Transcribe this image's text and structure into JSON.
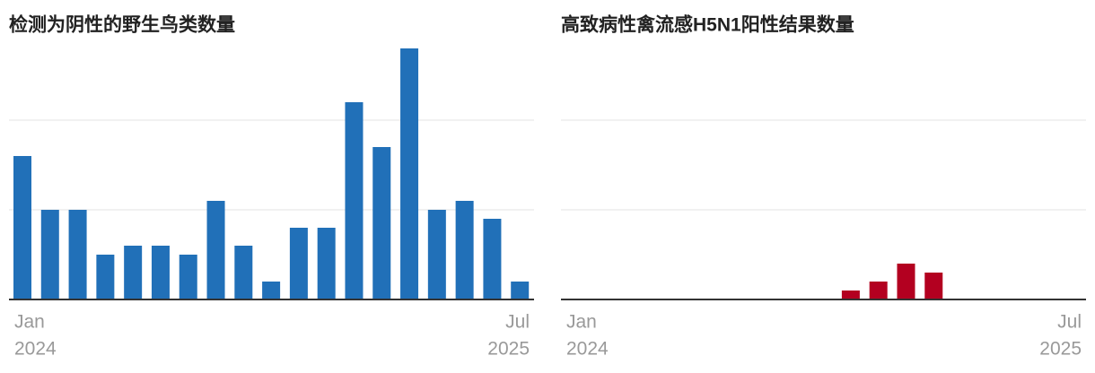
{
  "chart_data": [
    {
      "type": "bar",
      "title": "检测为阴性的野生鸟类数量",
      "categories": [
        [
          "Jan",
          "2024"
        ],
        null,
        null,
        null,
        null,
        null,
        null,
        null,
        null,
        null,
        null,
        null,
        null,
        null,
        null,
        null,
        null,
        null,
        [
          "Jul",
          "2025"
        ]
      ],
      "values": [
        16,
        10,
        10,
        5,
        6,
        6,
        5,
        11,
        6,
        2,
        8,
        8,
        22,
        17,
        28,
        10,
        11,
        9,
        2
      ],
      "color": "#2170b8",
      "ylim": [
        0,
        30
      ],
      "yticks": [
        0,
        10,
        20
      ],
      "grid": true
    },
    {
      "type": "bar",
      "title": "高致病性禽流感H5N1阳性结果数量",
      "categories": [
        [
          "Jan",
          "2024"
        ],
        null,
        null,
        null,
        null,
        null,
        null,
        null,
        null,
        null,
        null,
        null,
        null,
        null,
        null,
        null,
        null,
        null,
        [
          "Jul",
          "2025"
        ]
      ],
      "values": [
        0,
        0,
        0,
        0,
        0,
        0,
        0,
        0,
        0,
        0,
        1,
        2,
        4,
        3,
        0,
        0,
        0,
        0,
        0
      ],
      "color": "#b30020",
      "ylim": [
        0,
        30
      ],
      "yticks": [
        0,
        10,
        20
      ],
      "grid": true
    }
  ]
}
